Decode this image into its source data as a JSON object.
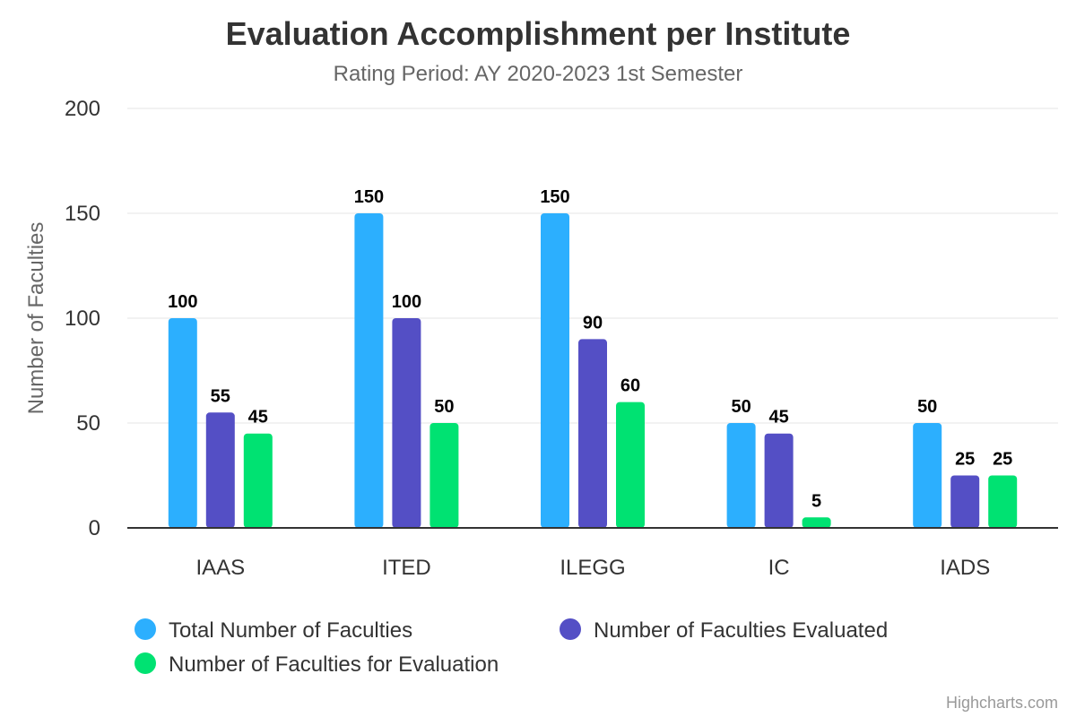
{
  "chart_data": {
    "type": "bar",
    "title": "Evaluation Accomplishment per Institute",
    "subtitle": "Rating Period: AY 2020-2023 1st Semester",
    "xlabel": "",
    "ylabel": "Number of Faculties",
    "categories": [
      "IAAS",
      "ITED",
      "ILEGG",
      "IC",
      "IADS"
    ],
    "series": [
      {
        "name": "Total Number of Faculties",
        "color": "#2caffe",
        "values": [
          100,
          150,
          150,
          50,
          50
        ]
      },
      {
        "name": "Number of Faculties Evaluated",
        "color": "#544fc5",
        "values": [
          55,
          100,
          90,
          45,
          25
        ]
      },
      {
        "name": "Number of Faculties for Evaluation",
        "color": "#00e272",
        "values": [
          45,
          50,
          60,
          5,
          25
        ]
      }
    ],
    "ylim": [
      0,
      200
    ],
    "yticks": [
      0,
      50,
      100,
      150,
      200
    ],
    "grid": true,
    "legend_position": "bottom",
    "data_labels": true
  },
  "credits": "Highcharts.com"
}
